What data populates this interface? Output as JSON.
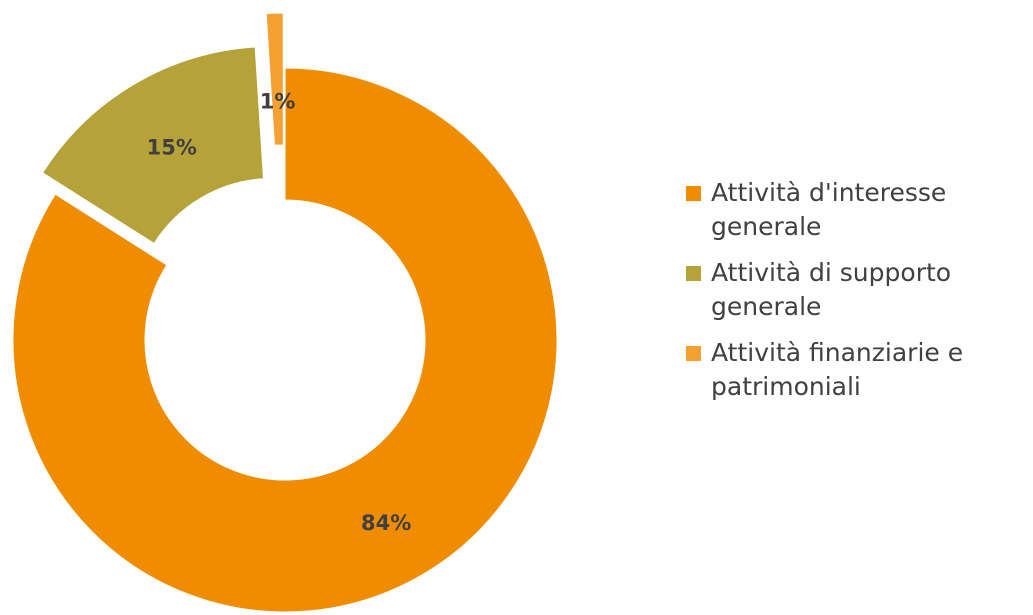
{
  "chart_data": {
    "type": "donut",
    "categories": [
      "Attività d'interesse generale",
      "Attività di supporto generale",
      "Attività finanziarie e patrimoniali"
    ],
    "values": [
      84,
      15,
      1
    ],
    "value_labels": [
      "84%",
      "15%",
      "1%"
    ],
    "colors": [
      "#f08c00",
      "#b5a33a",
      "#f5a030"
    ],
    "legend": "right"
  }
}
